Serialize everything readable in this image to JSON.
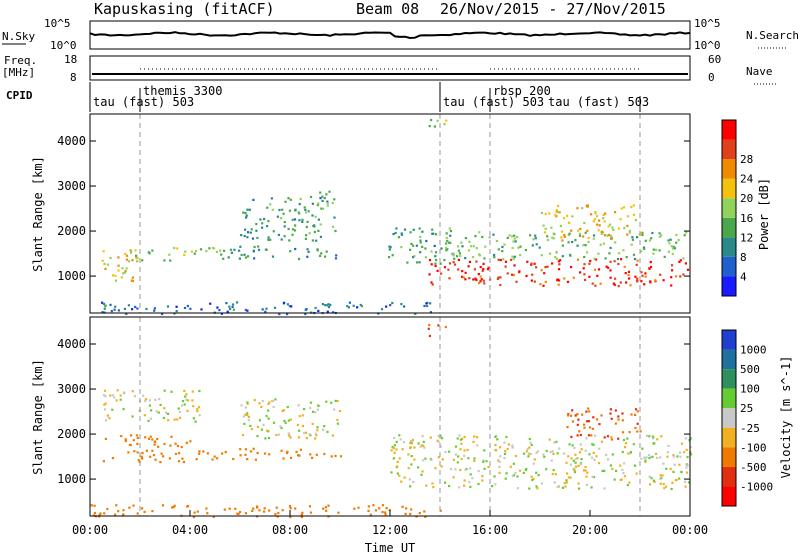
{
  "header": {
    "station": "Kapuskasing (fitACF)",
    "beam": "Beam 08",
    "date_range": "26/Nov/2015 - 27/Nov/2015"
  },
  "noise_panel": {
    "label": "N.Sky",
    "right_label": "N.Search",
    "ticks_left": [
      "10^5",
      "10^0"
    ],
    "ticks_right": [
      "10^5",
      "10^0"
    ]
  },
  "freq_panel": {
    "label": "Freq.",
    "unit": "[MHz]",
    "right_label": "Nave",
    "ticks_left": [
      "18",
      "8"
    ],
    "ticks_right": [
      "60",
      "0"
    ]
  },
  "cpid": {
    "label": "CPID",
    "segments": [
      {
        "start_hr": 0.0,
        "end_hr": 14.0,
        "name": "tau (fast) 503"
      },
      {
        "start_hr": 2.0,
        "end_hr": 14.0,
        "name": "themis 3300"
      },
      {
        "start_hr": 14.0,
        "end_hr": 22.0,
        "name": "tau (fast) 503"
      },
      {
        "start_hr": 16.0,
        "end_hr": 22.0,
        "name": "rbsp 200"
      },
      {
        "start_hr": 18.0,
        "end_hr": 22.0,
        "name": "tau (fast) 503"
      }
    ]
  },
  "x_axis": {
    "label": "Time UT",
    "ticks": [
      "00:00",
      "04:00",
      "08:00",
      "12:00",
      "16:00",
      "20:00",
      "00:00"
    ],
    "range_hr": [
      0,
      24
    ]
  },
  "power_panel": {
    "ylabel": "Slant Range [km]",
    "yticks": [
      "1000",
      "2000",
      "3000",
      "4000"
    ],
    "colorbar_label": "Power [dB]",
    "colorbar_ticks": [
      "4",
      "8",
      "12",
      "16",
      "20",
      "24",
      "28"
    ],
    "colors": [
      "#1a1aff",
      "#1f5fcf",
      "#2a8a8a",
      "#4aa84a",
      "#8fd35a",
      "#f4c20d",
      "#f08a00",
      "#e0401a",
      "#ff0000"
    ]
  },
  "velocity_panel": {
    "ylabel": "Slant Range [km]",
    "yticks": [
      "1000",
      "2000",
      "3000",
      "4000"
    ],
    "colorbar_label": "Velocity [m s^-1]",
    "colorbar_ticks": [
      "1000",
      "500",
      "100",
      "25",
      "-25",
      "-100",
      "-500",
      "-1000"
    ],
    "colors": [
      "#1f3fd0",
      "#1f6f9f",
      "#2f8f5f",
      "#66cc33",
      "#c8c8c8",
      "#f0b020",
      "#f07a00",
      "#e03010",
      "#ff0000"
    ]
  },
  "chart_data": {
    "type": "heatmap",
    "x_range_hr": [
      0,
      24
    ],
    "y_range_km": [
      180,
      4600
    ],
    "power_regions": [
      {
        "t0": 0.2,
        "t1": 1.8,
        "r0": 900,
        "r1": 1600,
        "db": 20
      },
      {
        "t0": 1.5,
        "t1": 5.5,
        "r0": 1350,
        "r1": 1650,
        "db": 16
      },
      {
        "t0": 5.5,
        "t1": 10.0,
        "r0": 1400,
        "r1": 1700,
        "db": 10
      },
      {
        "t0": 6.0,
        "t1": 9.8,
        "r0": 1800,
        "r1": 2900,
        "db": 12
      },
      {
        "t0": 0.0,
        "t1": 14.0,
        "r0": 180,
        "r1": 450,
        "db": 8
      },
      {
        "t0": 11.8,
        "t1": 14.5,
        "r0": 1300,
        "r1": 2100,
        "db": 12
      },
      {
        "t0": 13.5,
        "t1": 24.0,
        "r0": 800,
        "r1": 1400,
        "db": 27
      },
      {
        "t0": 14.0,
        "t1": 24.0,
        "r0": 1400,
        "r1": 2000,
        "db": 14
      },
      {
        "t0": 18.0,
        "t1": 22.0,
        "r0": 1800,
        "r1": 2600,
        "db": 20
      },
      {
        "t0": 13.5,
        "t1": 14.3,
        "r0": 4200,
        "r1": 4500,
        "db": 16
      }
    ],
    "velocity_regions": [
      {
        "t0": 0.5,
        "t1": 4.0,
        "r0": 1400,
        "r1": 2000,
        "v": -300
      },
      {
        "t0": 4.0,
        "t1": 10.0,
        "r0": 1450,
        "r1": 1700,
        "v": -200
      },
      {
        "t0": 0.5,
        "t1": 4.5,
        "r0": 2300,
        "r1": 3000,
        "v": 0
      },
      {
        "t0": 6.0,
        "t1": 10.0,
        "r0": 1900,
        "r1": 2800,
        "v": 0
      },
      {
        "t0": 0.0,
        "t1": 14.0,
        "r0": 180,
        "r1": 450,
        "v": -200
      },
      {
        "t0": 12.0,
        "t1": 24.0,
        "r0": 800,
        "r1": 2000,
        "v": 0
      },
      {
        "t0": 19.0,
        "t1": 22.0,
        "r0": 1900,
        "r1": 2600,
        "v": -500
      },
      {
        "t0": 13.5,
        "t1": 14.2,
        "r0": 4200,
        "r1": 4500,
        "v": -500
      }
    ]
  }
}
